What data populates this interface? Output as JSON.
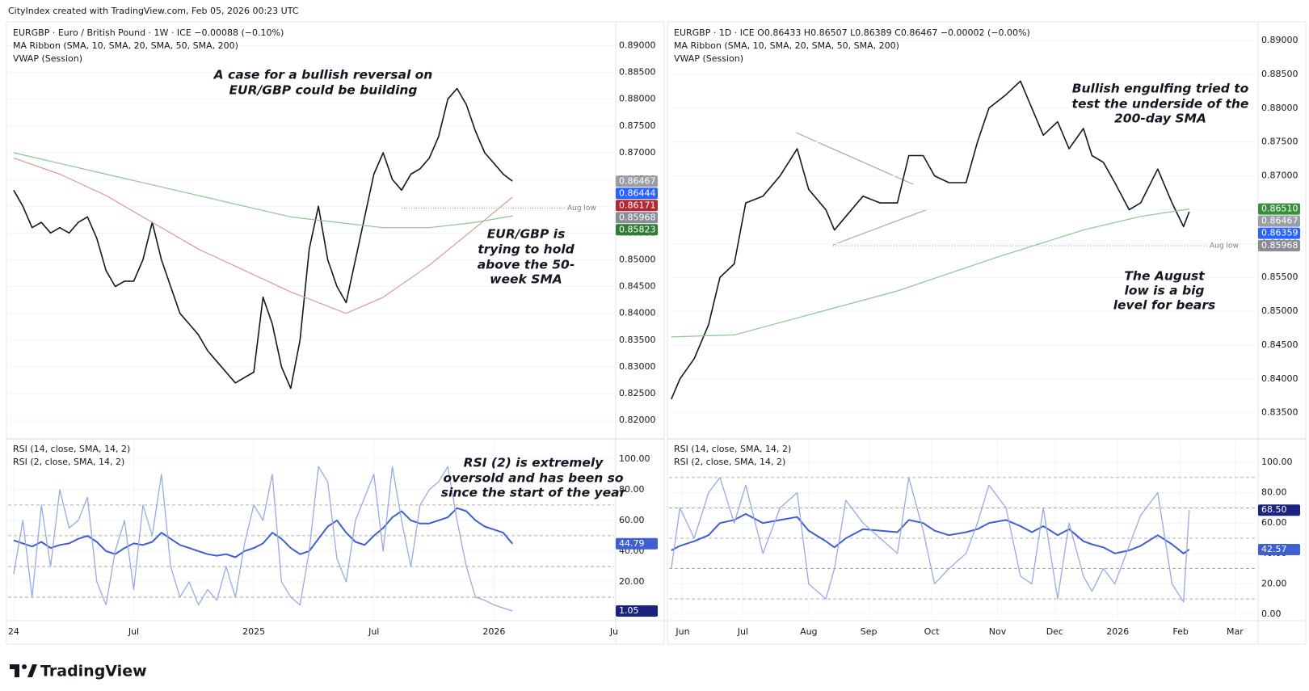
{
  "header": "CityIndex created with TradingView.com, Feb 05, 2026 00:23 UTC",
  "footer": "TradingView",
  "annotations": {
    "left_top": [
      "A case for a bullish reversal on",
      "EUR/GBP could be building"
    ],
    "left_sma": [
      "EUR/GBP is",
      "trying to hold",
      "above the 50-",
      "week SMA"
    ],
    "left_rsi": [
      "RSI (2) is extremely",
      "oversold and has been so",
      "since the start of the year"
    ],
    "right_top": [
      "Bullish engulfing tried to",
      "test the underside of the",
      "200-day SMA"
    ],
    "right_low": [
      "The August",
      "low is a big",
      "level for bears"
    ]
  },
  "chart_data": [
    {
      "type": "line",
      "legend": [
        "EURGBP · Euro / British Pound · 1W · ICE  −0.00088 (−0.10%)",
        "MA Ribbon (SMA, 10, SMA, 20, SMA, 50, SMA, 200)",
        "VWAP (Session)"
      ],
      "xlim": [
        -1.2,
        130
      ],
      "ylim": [
        0.817,
        0.894
      ],
      "yticks": [
        {
          "value": 0.82,
          "label": "0.82000"
        },
        {
          "value": 0.825,
          "label": "0.82500"
        },
        {
          "value": 0.83,
          "label": "0.83000"
        },
        {
          "value": 0.835,
          "label": "0.83500"
        },
        {
          "value": 0.84,
          "label": "0.84000"
        },
        {
          "value": 0.845,
          "label": "0.84500"
        },
        {
          "value": 0.85,
          "label": "0.85000"
        },
        {
          "value": 0.855,
          "label": "0.85500"
        },
        {
          "value": 0.86,
          "label": "0.86000"
        },
        {
          "value": 0.865,
          "label": "0.86500"
        },
        {
          "value": 0.87,
          "label": "0.87000"
        },
        {
          "value": 0.875,
          "label": "0.87500"
        },
        {
          "value": 0.88,
          "label": "0.88000"
        },
        {
          "value": 0.885,
          "label": "0.88500"
        },
        {
          "value": 0.89,
          "label": "0.89000"
        }
      ],
      "series": [
        {
          "color": "#131722",
          "width": 1.6,
          "x": [
            0,
            2,
            4,
            6,
            8,
            10,
            12,
            14,
            16,
            18,
            20,
            22,
            24,
            26,
            28,
            30,
            32,
            34,
            36,
            38,
            40,
            42,
            44,
            46,
            48,
            50,
            52,
            54,
            56,
            58,
            60,
            62,
            64,
            66,
            68,
            70,
            72,
            74,
            76,
            78,
            80,
            82,
            84,
            86,
            88,
            90,
            92,
            94,
            96,
            98,
            100,
            102,
            104,
            106,
            108
          ],
          "values": [
            0.863,
            0.86,
            0.856,
            0.857,
            0.855,
            0.856,
            0.855,
            0.857,
            0.858,
            0.854,
            0.848,
            0.845,
            0.846,
            0.846,
            0.85,
            0.857,
            0.85,
            0.845,
            0.84,
            0.838,
            0.836,
            0.833,
            0.831,
            0.829,
            0.827,
            0.828,
            0.829,
            0.843,
            0.838,
            0.83,
            0.826,
            0.835,
            0.852,
            0.86,
            0.85,
            0.845,
            0.842,
            0.85,
            0.858,
            0.866,
            0.87,
            0.865,
            0.863,
            0.866,
            0.867,
            0.869,
            0.873,
            0.88,
            0.882,
            0.879,
            0.874,
            0.87,
            0.868,
            0.866,
            0.8647
          ]
        },
        {
          "color": "#d99a9a",
          "width": 1.2,
          "x": [
            0,
            10,
            20,
            30,
            40,
            50,
            60,
            72,
            80,
            90,
            100,
            108
          ],
          "values": [
            0.869,
            0.866,
            0.862,
            0.857,
            0.852,
            0.848,
            0.844,
            0.84,
            0.843,
            0.849,
            0.856,
            0.8617
          ]
        },
        {
          "color": "#8fc48f",
          "width": 1.2,
          "x": [
            0,
            10,
            20,
            30,
            40,
            50,
            60,
            70,
            80,
            90,
            100,
            108
          ],
          "values": [
            0.87,
            0.868,
            0.866,
            0.864,
            0.862,
            0.86,
            0.858,
            0.857,
            0.856,
            0.856,
            0.857,
            0.8582
          ]
        }
      ],
      "level": {
        "value": 0.85968,
        "x": 84,
        "label": "Aug low"
      },
      "markers": [
        {
          "value": 0.86467,
          "label": "0.86467",
          "color": "#9a9da6"
        },
        {
          "value": 0.86444,
          "label": "0.86444",
          "color": "#2962ff"
        },
        {
          "value": 0.86171,
          "label": "0.86171",
          "color": "#b22833"
        },
        {
          "value": 0.85968,
          "label": "0.85968",
          "color": "#8a8d96"
        },
        {
          "value": 0.85823,
          "label": "0.85823",
          "color": "#2e7d32"
        }
      ]
    },
    {
      "type": "line",
      "xlim": [
        -1.2,
        130
      ],
      "ylim": [
        -3.7,
        112
      ],
      "yticks": [
        {
          "value": 20,
          "label": "20.00"
        },
        {
          "value": 40,
          "label": "40.00"
        },
        {
          "value": 60,
          "label": "60.00"
        },
        {
          "value": 80,
          "label": "80.00"
        },
        {
          "value": 100,
          "label": "100.00"
        }
      ],
      "bands": [
        70,
        50,
        30,
        10
      ],
      "xticks": [
        {
          "value": 0,
          "label": "24"
        },
        {
          "value": 26,
          "label": "Jul"
        },
        {
          "value": 52,
          "label": "2025"
        },
        {
          "value": 78,
          "label": "Jul"
        },
        {
          "value": 104,
          "label": "2026"
        },
        {
          "value": 130,
          "label": "Ju"
        }
      ],
      "series": [
        {
          "name": "RSI (14, close, SMA, 14, 2)",
          "color": "#3d5fd1",
          "width": 2,
          "x": [
            0,
            2,
            4,
            6,
            8,
            10,
            12,
            14,
            16,
            18,
            20,
            22,
            24,
            26,
            28,
            30,
            32,
            34,
            36,
            38,
            40,
            42,
            44,
            46,
            48,
            50,
            52,
            54,
            56,
            58,
            60,
            62,
            64,
            66,
            68,
            70,
            72,
            74,
            76,
            78,
            80,
            82,
            84,
            86,
            88,
            90,
            92,
            94,
            96,
            98,
            100,
            102,
            104,
            106,
            108
          ],
          "values": [
            47,
            45,
            43,
            46,
            42,
            44,
            45,
            48,
            50,
            46,
            40,
            38,
            42,
            45,
            44,
            46,
            52,
            48,
            44,
            42,
            40,
            38,
            37,
            38,
            36,
            40,
            42,
            45,
            52,
            48,
            42,
            38,
            40,
            48,
            56,
            60,
            52,
            46,
            44,
            50,
            55,
            62,
            66,
            60,
            58,
            58,
            60,
            62,
            68,
            66,
            60,
            56,
            54,
            52,
            44.79
          ]
        },
        {
          "name": "RSI (2, close, SMA, 14, 2)",
          "color": "#97aae3",
          "width": 1.3,
          "x": [
            0,
            2,
            4,
            6,
            8,
            10,
            12,
            14,
            16,
            18,
            20,
            22,
            24,
            26,
            28,
            30,
            32,
            34,
            36,
            38,
            40,
            42,
            44,
            46,
            48,
            50,
            52,
            54,
            56,
            58,
            60,
            62,
            64,
            66,
            68,
            70,
            72,
            74,
            76,
            78,
            80,
            82,
            84,
            86,
            88,
            90,
            92,
            94,
            96,
            98,
            100,
            102,
            104,
            106,
            108
          ],
          "values": [
            25,
            60,
            10,
            70,
            30,
            80,
            55,
            60,
            75,
            20,
            5,
            40,
            60,
            15,
            70,
            50,
            90,
            30,
            10,
            20,
            5,
            15,
            8,
            30,
            10,
            45,
            70,
            60,
            90,
            20,
            10,
            5,
            40,
            95,
            85,
            35,
            20,
            60,
            75,
            90,
            40,
            95,
            60,
            30,
            70,
            80,
            85,
            95,
            60,
            30,
            10,
            8,
            5,
            3,
            1.05
          ]
        }
      ],
      "markers": [
        {
          "value": 44.79,
          "label": "44.79",
          "color": "#3d5fd1"
        },
        {
          "value": 1.05,
          "label": "1.05",
          "color": "#1a237e"
        }
      ]
    },
    {
      "type": "line",
      "legend": [
        "EURGBP · 1D · ICE  O0.86433  H0.86507  L0.86389  C0.86467  −0.00002 (−0.00%)",
        "MA Ribbon (SMA, 10, SMA, 20, SMA, 50, SMA, 200)",
        "VWAP (Session)"
      ],
      "xlim": [
        -4.8,
        200.5
      ],
      "ylim": [
        0.8315,
        0.8924
      ],
      "yticks": [
        {
          "value": 0.835,
          "label": "0.83500"
        },
        {
          "value": 0.84,
          "label": "0.84000"
        },
        {
          "value": 0.845,
          "label": "0.84500"
        },
        {
          "value": 0.85,
          "label": "0.85000"
        },
        {
          "value": 0.855,
          "label": "0.85500"
        },
        {
          "value": 0.86,
          "label": "0.86000"
        },
        {
          "value": 0.865,
          "label": "0.86500"
        },
        {
          "value": 0.87,
          "label": "0.87000"
        },
        {
          "value": 0.875,
          "label": "0.87500"
        },
        {
          "value": 0.88,
          "label": "0.88000"
        },
        {
          "value": 0.885,
          "label": "0.88500"
        },
        {
          "value": 0.89,
          "label": "0.89000"
        }
      ],
      "series": [
        {
          "color": "#131722",
          "width": 1.6,
          "x": [
            -4,
            -1,
            4,
            9,
            13,
            18,
            22,
            28,
            34,
            40,
            44,
            50,
            53,
            57,
            63,
            69,
            75,
            79,
            84,
            88,
            93,
            99,
            103,
            107,
            113,
            118,
            122,
            126,
            131,
            135,
            140,
            143,
            147,
            151,
            156,
            160,
            166,
            171,
            175,
            177
          ],
          "values": [
            0.837,
            0.84,
            0.843,
            0.848,
            0.855,
            0.857,
            0.866,
            0.867,
            0.87,
            0.874,
            0.868,
            0.865,
            0.862,
            0.864,
            0.867,
            0.866,
            0.866,
            0.873,
            0.873,
            0.87,
            0.869,
            0.869,
            0.875,
            0.88,
            0.882,
            0.884,
            0.88,
            0.876,
            0.878,
            0.874,
            0.877,
            0.873,
            0.872,
            0.869,
            0.865,
            0.866,
            0.871,
            0.866,
            0.8625,
            0.8647
          ]
        },
        {
          "color": "#8fc48f",
          "width": 1.2,
          "x": [
            -4,
            18,
            40,
            75,
            110,
            140,
            160,
            177
          ],
          "values": [
            0.8462,
            0.8465,
            0.849,
            0.853,
            0.858,
            0.862,
            0.864,
            0.8651
          ]
        }
      ],
      "level": {
        "value": 0.85968,
        "x": 52.5,
        "label": "Aug low"
      },
      "markers": [
        {
          "value": 0.8651,
          "label": "0.86510",
          "color": "#388e3c"
        },
        {
          "value": 0.86467,
          "label": "0.86467",
          "color": "#9a9da6"
        },
        {
          "value": 0.86359,
          "label": "0.86359",
          "color": "#2962ff"
        },
        {
          "value": 0.85968,
          "label": "0.85968",
          "color": "#8a8d96"
        }
      ]
    },
    {
      "type": "line",
      "xlim": [
        -4.8,
        200.5
      ],
      "ylim": [
        -2.7,
        114.4
      ],
      "yticks": [
        {
          "value": 0,
          "label": "0.00"
        },
        {
          "value": 20,
          "label": "20.00"
        },
        {
          "value": 40,
          "label": "40.00"
        },
        {
          "value": 60,
          "label": "60.00"
        },
        {
          "value": 80,
          "label": "80.00"
        },
        {
          "value": 100,
          "label": "100.00"
        }
      ],
      "bands": [
        90,
        70,
        50,
        30,
        10
      ],
      "xticks": [
        {
          "value": 0,
          "label": "Jun"
        },
        {
          "value": 21,
          "label": "Jul"
        },
        {
          "value": 44,
          "label": "Aug"
        },
        {
          "value": 65,
          "label": "Sep"
        },
        {
          "value": 87,
          "label": "Oct"
        },
        {
          "value": 110,
          "label": "Nov"
        },
        {
          "value": 130,
          "label": "Dec"
        },
        {
          "value": 152,
          "label": "2026"
        },
        {
          "value": 174,
          "label": "Feb"
        },
        {
          "value": 193,
          "label": "Mar"
        }
      ],
      "series": [
        {
          "name": "RSI (14, close, SMA, 14, 2)",
          "color": "#3d5fd1",
          "width": 2,
          "x": [
            -4,
            -1,
            4,
            9,
            13,
            18,
            22,
            28,
            34,
            40,
            44,
            50,
            53,
            57,
            63,
            69,
            75,
            79,
            84,
            88,
            93,
            99,
            103,
            107,
            113,
            118,
            122,
            126,
            131,
            135,
            140,
            143,
            147,
            151,
            156,
            160,
            166,
            171,
            175,
            177
          ],
          "values": [
            42,
            45,
            48,
            52,
            60,
            62,
            66,
            60,
            62,
            64,
            55,
            48,
            44,
            50,
            56,
            55,
            54,
            62,
            60,
            55,
            52,
            54,
            56,
            60,
            62,
            58,
            54,
            58,
            52,
            56,
            48,
            46,
            44,
            40,
            42,
            45,
            52,
            46,
            40,
            42.57
          ]
        },
        {
          "name": "RSI (2, close, SMA, 14, 2)",
          "color": "#97aae3",
          "width": 1.3,
          "x": [
            -4,
            -1,
            4,
            9,
            13,
            18,
            22,
            28,
            34,
            40,
            44,
            50,
            53,
            57,
            63,
            69,
            75,
            79,
            84,
            88,
            93,
            99,
            103,
            107,
            113,
            118,
            122,
            126,
            131,
            135,
            140,
            143,
            147,
            151,
            156,
            160,
            166,
            171,
            175,
            177
          ],
          "values": [
            30,
            70,
            50,
            80,
            90,
            60,
            85,
            40,
            70,
            80,
            20,
            10,
            30,
            75,
            60,
            50,
            40,
            90,
            55,
            20,
            30,
            40,
            60,
            85,
            70,
            25,
            20,
            70,
            10,
            60,
            25,
            15,
            30,
            20,
            45,
            65,
            80,
            20,
            8,
            68.5
          ]
        }
      ],
      "markers": [
        {
          "value": 68.5,
          "label": "68.50",
          "color": "#1a237e"
        },
        {
          "value": 42.57,
          "label": "42.57",
          "color": "#3d5fd1"
        }
      ]
    }
  ]
}
